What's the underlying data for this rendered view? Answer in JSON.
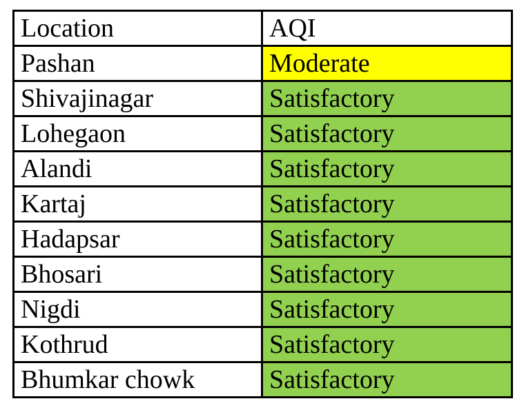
{
  "table": {
    "headers": [
      {
        "label": "Location"
      },
      {
        "label": "AQI"
      }
    ],
    "rows": [
      {
        "location": "Pashan",
        "aqi": "Moderate",
        "status": "moderate"
      },
      {
        "location": "Shivajinagar",
        "aqi": "Satisfactory",
        "status": "satisfactory"
      },
      {
        "location": "Lohegaon",
        "aqi": "Satisfactory",
        "status": "satisfactory"
      },
      {
        "location": "Alandi",
        "aqi": "Satisfactory",
        "status": "satisfactory"
      },
      {
        "location": "Kartaj",
        "aqi": "Satisfactory",
        "status": "satisfactory"
      },
      {
        "location": "Hadapsar",
        "aqi": "Satisfactory",
        "status": "satisfactory"
      },
      {
        "location": "Bhosari",
        "aqi": "Satisfactory",
        "status": "satisfactory"
      },
      {
        "location": "Nigdi",
        "aqi": "Satisfactory",
        "status": "satisfactory"
      },
      {
        "location": "Kothrud",
        "aqi": "Satisfactory",
        "status": "satisfactory"
      },
      {
        "location": "Bhumkar chowk",
        "aqi": "Satisfactory",
        "status": "satisfactory"
      }
    ]
  },
  "colors": {
    "moderate": "#FFFF00",
    "satisfactory": "#92D050",
    "header_bg": "#FFFFFF",
    "border": "#000000",
    "text": "#000000"
  },
  "chart_data": {
    "type": "table",
    "title": "",
    "columns": [
      "Location",
      "AQI"
    ],
    "rows": [
      [
        "Pashan",
        "Moderate"
      ],
      [
        "Shivajinagar",
        "Satisfactory"
      ],
      [
        "Lohegaon",
        "Satisfactory"
      ],
      [
        "Alandi",
        "Satisfactory"
      ],
      [
        "Kartaj",
        "Satisfactory"
      ],
      [
        "Hadapsar",
        "Satisfactory"
      ],
      [
        "Bhosari",
        "Satisfactory"
      ],
      [
        "Nigdi",
        "Satisfactory"
      ],
      [
        "Kothrud",
        "Satisfactory"
      ],
      [
        "Bhumkar chowk",
        "Satisfactory"
      ]
    ]
  }
}
